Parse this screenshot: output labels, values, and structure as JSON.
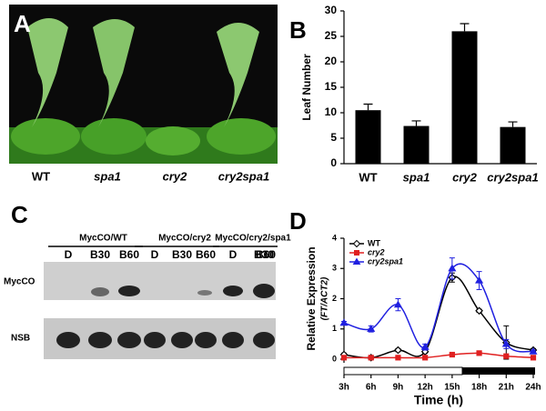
{
  "panel_a": {
    "label": "A",
    "genotypes": [
      "WT",
      "spa1",
      "cry2",
      "cry2spa1"
    ]
  },
  "panel_c": {
    "label": "C",
    "groups": [
      {
        "title": "MycCO/WT",
        "lanes": [
          "D",
          "B30",
          "B60"
        ]
      },
      {
        "title": "MycCO/cry2",
        "lanes": [
          "D",
          "B30",
          "B60"
        ]
      },
      {
        "title": "MycCO/cry2/spa1",
        "lanes": [
          "D",
          "B30",
          "B60"
        ]
      }
    ],
    "rows": [
      "MycCO",
      "NSB"
    ]
  },
  "chart_data": [
    {
      "type": "bar",
      "label": "B",
      "y_label": "Leaf Number",
      "categories": [
        "WT",
        "spa1",
        "cry2",
        "cry2spa1"
      ],
      "values": [
        10.5,
        7.4,
        26,
        7.2
      ],
      "errors": [
        1.2,
        1,
        1.5,
        1
      ],
      "color": "#000000",
      "ylim": [
        0,
        30
      ],
      "yticks": [
        0,
        5,
        10,
        15,
        20,
        25,
        30
      ]
    },
    {
      "type": "line",
      "label": "D",
      "y_label": "Relative Expression",
      "y_sublabel": "(FT/ACT2)",
      "x_label": "Time (h)",
      "x": [
        3,
        6,
        9,
        12,
        15,
        18,
        21,
        24
      ],
      "series": [
        {
          "name": "WT",
          "color": "#000000",
          "marker": "diamond",
          "values": [
            0.15,
            0.05,
            0.3,
            0.25,
            2.7,
            1.6,
            0.55,
            0.3
          ],
          "errors": [
            0.05,
            0.05,
            0.05,
            0.05,
            0.15,
            0.05,
            0.55,
            0.05
          ]
        },
        {
          "name": "cry2",
          "color": "#e02020",
          "marker": "square",
          "values": [
            0.05,
            0.05,
            0.05,
            0.05,
            0.15,
            0.2,
            0.1,
            0.05
          ],
          "errors": [
            0.02,
            0.02,
            0.02,
            0.02,
            0.03,
            0.03,
            0.02,
            0.02
          ]
        },
        {
          "name": "cry2spa1",
          "color": "#2020e0",
          "marker": "triangle",
          "values": [
            1.2,
            1.0,
            1.8,
            0.4,
            3.0,
            2.6,
            0.5,
            0.25
          ],
          "errors": [
            0.05,
            0.1,
            0.2,
            0.1,
            0.35,
            0.3,
            0.15,
            0.05
          ]
        }
      ],
      "xlim": [
        3,
        24
      ],
      "xticks": [
        {
          "value": 3,
          "label": "3h"
        },
        {
          "value": 6,
          "label": "6h"
        },
        {
          "value": 9,
          "label": "9h"
        },
        {
          "value": 12,
          "label": "12h"
        },
        {
          "value": 15,
          "label": "15h"
        },
        {
          "value": 18,
          "label": "18h"
        },
        {
          "value": 21,
          "label": "21h"
        },
        {
          "value": 24,
          "label": "24h"
        }
      ],
      "ylim": [
        0,
        4
      ],
      "yticks": [
        0,
        1,
        2,
        3,
        4
      ]
    }
  ]
}
